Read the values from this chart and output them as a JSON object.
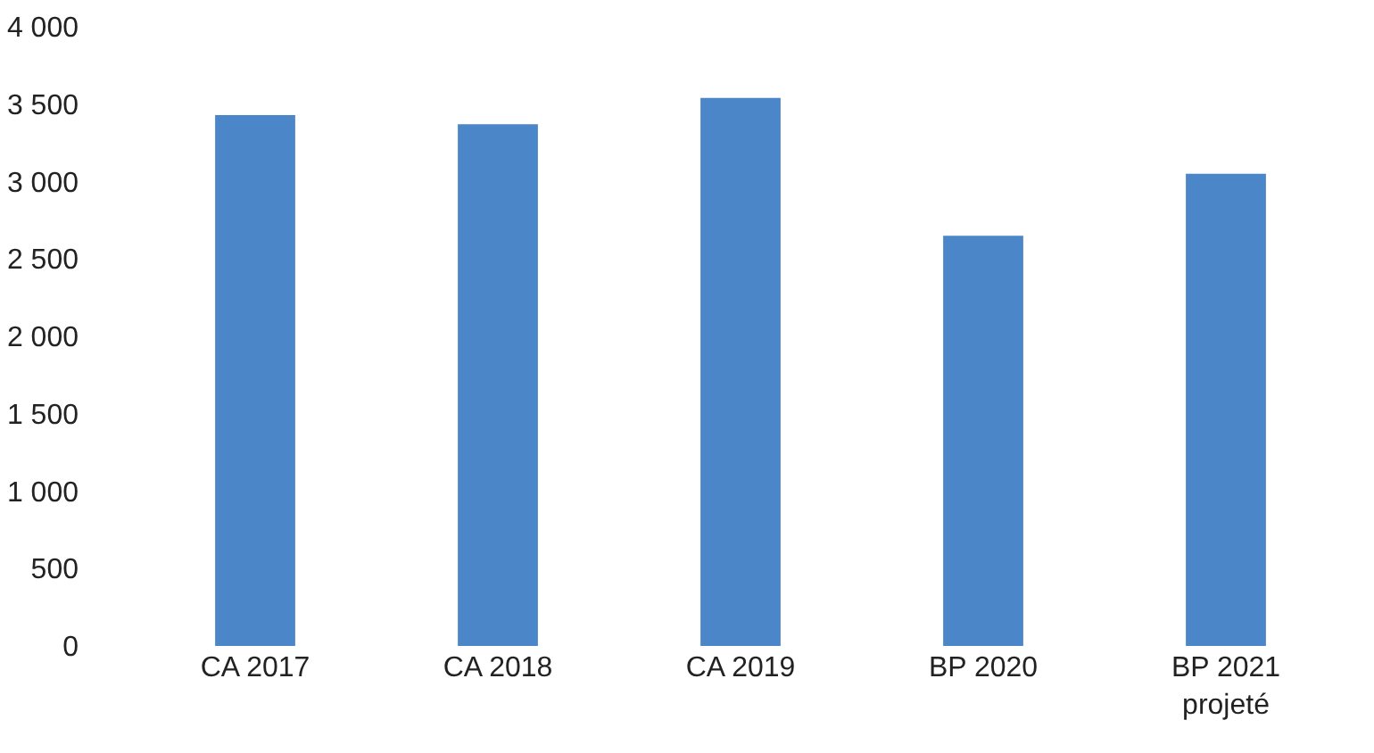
{
  "chart_data": {
    "type": "bar",
    "categories": [
      "CA 2017",
      "CA 2018",
      "CA 2019",
      "BP 2020",
      "BP 2021 projeté"
    ],
    "values": [
      3430,
      3370,
      3540,
      2650,
      3050
    ],
    "color": "#4a86c8",
    "ylim": [
      0,
      4000
    ],
    "yticks": [
      0,
      500,
      {
        "value": 1000,
        "label": "1 000"
      },
      {
        "value": 1500,
        "label": "1 500"
      },
      {
        "value": 2000,
        "label": "2 000"
      },
      {
        "value": 2500,
        "label": "2 500"
      },
      {
        "value": 3000,
        "label": "3 000"
      },
      {
        "value": 3500,
        "label": "3 500"
      },
      {
        "value": 4000,
        "label": "4 000"
      }
    ],
    "grid": false
  }
}
